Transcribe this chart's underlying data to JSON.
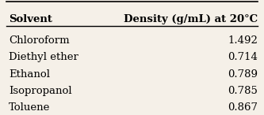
{
  "col1_header": "Solvent",
  "col2_header": "Density (g/mL) at 20°C",
  "rows": [
    [
      "Chloroform",
      "1.492"
    ],
    [
      "Diethyl ether",
      "0.714"
    ],
    [
      "Ethanol",
      "0.789"
    ],
    [
      "Isopropanol",
      "0.785"
    ],
    [
      "Toluene",
      "0.867"
    ]
  ],
  "bg_color": "#f5f0e8",
  "header_fontsize": 9.5,
  "row_fontsize": 9.5,
  "fig_width": 3.33,
  "fig_height": 1.46
}
